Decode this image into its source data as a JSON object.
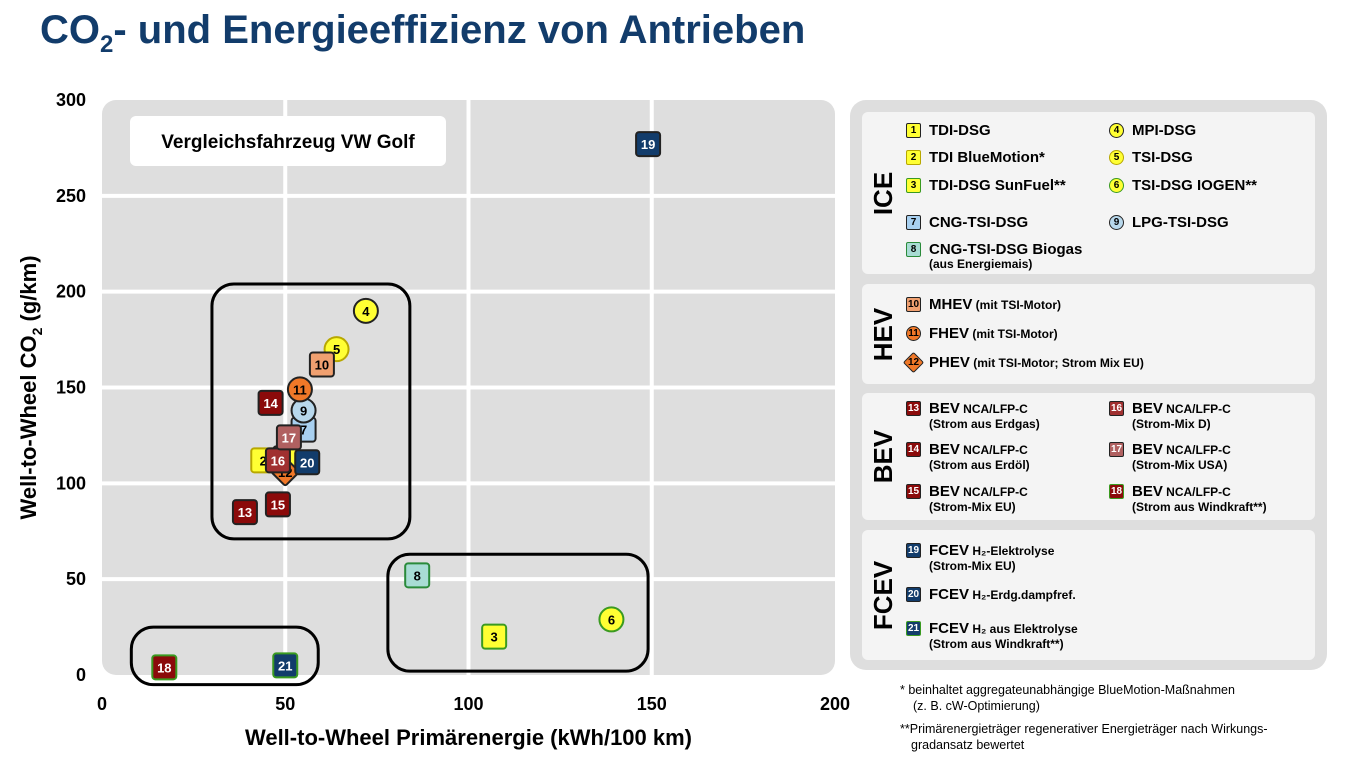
{
  "title_main": "CO",
  "title_sub": "2",
  "title_rest": "- und Energieeffizienz von Antrieben",
  "colors": {
    "title": "#123c6b",
    "plot_bg": "#dedede",
    "yellow": "#ffff33",
    "light_blue": "#a8d0f0",
    "teal": "#a8dcd4",
    "orange_light": "#f0a070",
    "orange": "#f07828",
    "dark_red": "#8b0a0a",
    "mid_red": "#b06060",
    "navy": "#123c6b",
    "dark_green": "#1a5a3a"
  },
  "chart_data": {
    "type": "scatter",
    "xlabel": "Well-to-Wheel Primärenergie (kWh/100 km)",
    "ylabel_main": "Well-to-Wheel CO",
    "ylabel_sub": "2",
    "ylabel_rest": " (g/km)",
    "xlim": [
      0,
      200
    ],
    "ylim": [
      0,
      300
    ],
    "xticks": [
      0,
      50,
      100,
      150,
      200
    ],
    "yticks": [
      0,
      50,
      100,
      150,
      200,
      250,
      300
    ],
    "grid": true,
    "reference_label": "Vergleichsfahrzeug VW Golf",
    "groups_boxes": [
      {
        "x0": 30,
        "x1": 84,
        "y0": 71,
        "y1": 204
      },
      {
        "x0": 78,
        "x1": 149,
        "y0": 2,
        "y1": 63
      },
      {
        "x0": 8,
        "x1": 59,
        "y0": -5,
        "y1": 25
      }
    ],
    "points": [
      {
        "id": "1",
        "x": 50,
        "y": 113,
        "shape": "square",
        "fill": "#ffff33",
        "border": "#222",
        "text": "#000"
      },
      {
        "id": "2",
        "x": 44,
        "y": 112,
        "shape": "square",
        "fill": "#ffff33",
        "border": "#b8a800",
        "text": "#000"
      },
      {
        "id": "3",
        "x": 107,
        "y": 20,
        "shape": "square",
        "fill": "#ffff33",
        "border": "#3a9a20",
        "text": "#000"
      },
      {
        "id": "4",
        "x": 72,
        "y": 190,
        "shape": "circle",
        "fill": "#ffff33",
        "border": "#222",
        "text": "#000"
      },
      {
        "id": "5",
        "x": 64,
        "y": 170,
        "shape": "circle",
        "fill": "#ffff33",
        "border": "#b8a800",
        "text": "#000"
      },
      {
        "id": "6",
        "x": 139,
        "y": 29,
        "shape": "circle",
        "fill": "#ffff33",
        "border": "#3a9a20",
        "text": "#000"
      },
      {
        "id": "7",
        "x": 55,
        "y": 128,
        "shape": "square",
        "fill": "#a8d0f0",
        "border": "#222",
        "text": "#000"
      },
      {
        "id": "8",
        "x": 86,
        "y": 52,
        "shape": "square",
        "fill": "#a8dcd4",
        "border": "#2a8a3a",
        "text": "#000"
      },
      {
        "id": "9",
        "x": 55,
        "y": 138,
        "shape": "circle",
        "fill": "#b8d8ec",
        "border": "#222",
        "text": "#000"
      },
      {
        "id": "10",
        "x": 60,
        "y": 162,
        "shape": "square",
        "fill": "#f0a070",
        "border": "#222",
        "text": "#000"
      },
      {
        "id": "11",
        "x": 54,
        "y": 149,
        "shape": "circle",
        "fill": "#f07828",
        "border": "#222",
        "text": "#000"
      },
      {
        "id": "12",
        "x": 50,
        "y": 106,
        "shape": "diamond",
        "fill": "#f07828",
        "border": "#222",
        "text": "#000"
      },
      {
        "id": "13",
        "x": 39,
        "y": 85,
        "shape": "square",
        "fill": "#8b0a0a",
        "border": "#222",
        "text": "#fff"
      },
      {
        "id": "14",
        "x": 46,
        "y": 142,
        "shape": "square",
        "fill": "#8b0a0a",
        "border": "#222",
        "text": "#fff"
      },
      {
        "id": "15",
        "x": 48,
        "y": 89,
        "shape": "square",
        "fill": "#8b0a0a",
        "border": "#222",
        "text": "#fff"
      },
      {
        "id": "16",
        "x": 48,
        "y": 112,
        "shape": "square",
        "fill": "#a03030",
        "border": "#222",
        "text": "#fff"
      },
      {
        "id": "17",
        "x": 51,
        "y": 124,
        "shape": "square",
        "fill": "#b06060",
        "border": "#222",
        "text": "#fff"
      },
      {
        "id": "18",
        "x": 17,
        "y": 4,
        "shape": "square",
        "fill": "#8b0a0a",
        "border": "#3a9a20",
        "text": "#fff"
      },
      {
        "id": "19",
        "x": 149,
        "y": 277,
        "shape": "square",
        "fill": "#123c6b",
        "border": "#222",
        "text": "#fff"
      },
      {
        "id": "20",
        "x": 56,
        "y": 111,
        "shape": "square",
        "fill": "#123c6b",
        "border": "#222",
        "text": "#fff"
      },
      {
        "id": "21",
        "x": 50,
        "y": 5,
        "shape": "square",
        "fill": "#123c6b",
        "border": "#3a9a20",
        "text": "#fff"
      }
    ]
  },
  "legend": {
    "ice": {
      "title": "ICE",
      "items": [
        {
          "id": "1",
          "name": "TDI-DSG"
        },
        {
          "id": "4",
          "name": "MPI-DSG"
        },
        {
          "id": "2",
          "name": "TDI BlueMotion*"
        },
        {
          "id": "5",
          "name": "TSI-DSG"
        },
        {
          "id": "3",
          "name": "TDI-DSG SunFuel**"
        },
        {
          "id": "6",
          "name": "TSI-DSG IOGEN**"
        },
        {
          "id": "7",
          "name": "CNG-TSI-DSG"
        },
        {
          "id": "9",
          "name": "LPG-TSI-DSG"
        },
        {
          "id": "8",
          "name": "CNG-TSI-DSG Biogas",
          "sub": "(aus Energiemais)"
        }
      ]
    },
    "hev": {
      "title": "HEV",
      "items": [
        {
          "id": "10",
          "name": "MHEV",
          "qual": " (mit TSI-Motor)"
        },
        {
          "id": "11",
          "name": "FHEV",
          "qual": " (mit TSI-Motor)"
        },
        {
          "id": "12",
          "name": "PHEV",
          "qual": " (mit TSI-Motor; Strom Mix EU)"
        }
      ]
    },
    "bev": {
      "title": "BEV",
      "items": [
        {
          "id": "13",
          "name": "BEV",
          "qual": " NCA/LFP-C",
          "sub": "(Strom aus Erdgas)"
        },
        {
          "id": "16",
          "name": "BEV",
          "qual": " NCA/LFP-C",
          "sub": "(Strom-Mix D)"
        },
        {
          "id": "14",
          "name": "BEV",
          "qual": " NCA/LFP-C",
          "sub": "(Strom aus Erdöl)"
        },
        {
          "id": "17",
          "name": "BEV",
          "qual": " NCA/LFP-C",
          "sub": "(Strom-Mix USA)"
        },
        {
          "id": "15",
          "name": "BEV",
          "qual": " NCA/LFP-C",
          "sub": "(Strom-Mix EU)"
        },
        {
          "id": "18",
          "name": "BEV",
          "qual": " NCA/LFP-C",
          "sub": "(Strom aus Windkraft**)"
        }
      ]
    },
    "fcev": {
      "title": "FCEV",
      "items": [
        {
          "id": "19",
          "name": "FCEV",
          "qual": " H₂-Elektrolyse",
          "sub": "(Strom-Mix EU)"
        },
        {
          "id": "20",
          "name": "FCEV",
          "qual": " H₂-Erdg.dampfref."
        },
        {
          "id": "21",
          "name": "FCEV",
          "qual": " H₂ aus Elektrolyse",
          "sub": "(Strom aus Windkraft**)"
        }
      ]
    }
  },
  "footnotes": {
    "f1_a": "*  beinhaltet aggregateunabhängige BlueMotion-Maßnahmen",
    "f1_b": "(z. B. cW-Optimierung)",
    "f2_a": "**Primärenergieträger regenerativer Energieträger nach Wirkungs-",
    "f2_b": "gradansatz bewertet"
  }
}
